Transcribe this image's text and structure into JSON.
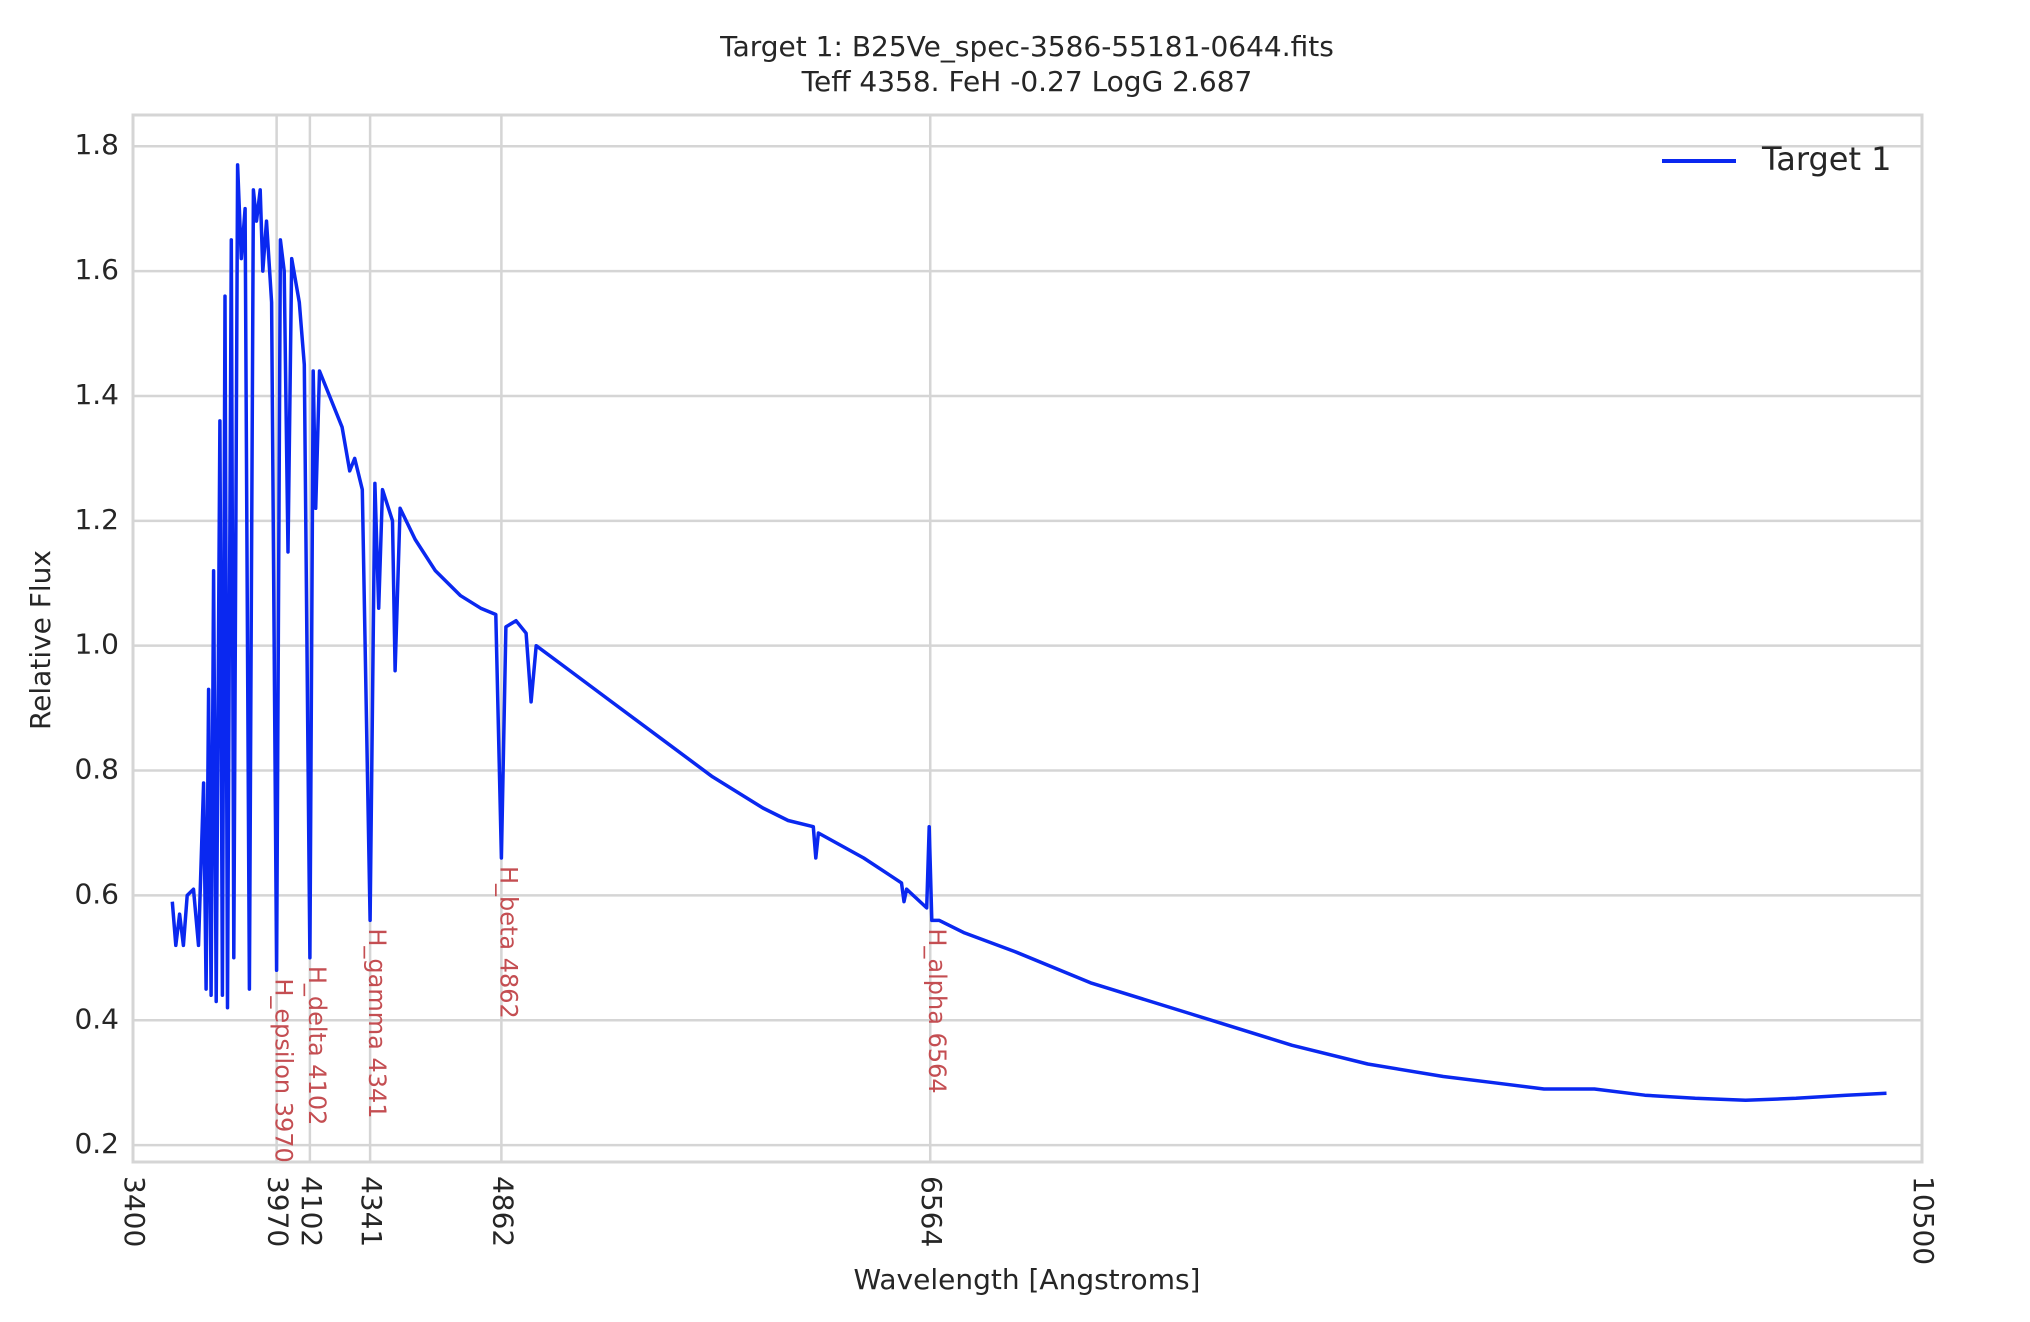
{
  "chart_data": {
    "type": "line",
    "title": "Target 1: B25Ve_spec-3586-55181-0644.fits",
    "subtitle": "Teff 4358. FeH -0.27 LogG 2.687",
    "x_label": "Wavelength [Angstroms]",
    "y_label": "Relative Flux",
    "x": [
      3556,
      3570,
      3585,
      3600,
      3615,
      3640,
      3660,
      3680,
      3690,
      3700,
      3710,
      3720,
      3730,
      3745,
      3755,
      3765,
      3775,
      3790,
      3800,
      3815,
      3830,
      3845,
      3862,
      3878,
      3890,
      3905,
      3915,
      3930,
      3950,
      3970,
      3985,
      4000,
      4015,
      4030,
      4060,
      4080,
      4102,
      4115,
      4125,
      4140,
      4180,
      4230,
      4260,
      4280,
      4310,
      4341,
      4360,
      4375,
      4390,
      4430,
      4440,
      4460,
      4520,
      4600,
      4700,
      4780,
      4840,
      4862,
      4880,
      4920,
      4960,
      4980,
      5000,
      5100,
      5300,
      5500,
      5700,
      5900,
      6000,
      6100,
      6110,
      6120,
      6300,
      6450,
      6460,
      6470,
      6550,
      6560,
      6570,
      6600,
      6700,
      6900,
      7200,
      7600,
      8000,
      8300,
      8600,
      8800,
      9000,
      9200,
      9400,
      9600,
      9800,
      10000,
      10200,
      10359
    ],
    "series": [
      {
        "name": "Target 1",
        "color": "#0a28f0",
        "values": [
          0.59,
          0.52,
          0.57,
          0.52,
          0.6,
          0.61,
          0.52,
          0.78,
          0.45,
          0.93,
          0.44,
          1.12,
          0.43,
          1.36,
          0.44,
          1.56,
          0.42,
          1.65,
          0.5,
          1.77,
          1.62,
          1.7,
          0.45,
          1.73,
          1.68,
          1.73,
          1.6,
          1.68,
          1.55,
          0.48,
          1.65,
          1.6,
          1.15,
          1.62,
          1.55,
          1.45,
          0.5,
          1.44,
          1.22,
          1.44,
          1.4,
          1.35,
          1.28,
          1.3,
          1.25,
          0.56,
          1.26,
          1.06,
          1.25,
          1.2,
          0.96,
          1.22,
          1.17,
          1.12,
          1.08,
          1.06,
          1.05,
          0.66,
          1.03,
          1.04,
          1.02,
          0.91,
          1.0,
          0.97,
          0.91,
          0.85,
          0.79,
          0.74,
          0.72,
          0.71,
          0.66,
          0.7,
          0.66,
          0.62,
          0.59,
          0.61,
          0.58,
          0.71,
          0.56,
          0.56,
          0.54,
          0.51,
          0.46,
          0.41,
          0.36,
          0.33,
          0.31,
          0.3,
          0.29,
          0.29,
          0.28,
          0.275,
          0.272,
          0.275,
          0.28,
          0.283
        ]
      }
    ],
    "annotations": [
      {
        "x": 3970,
        "label": "H_epsilon 3970"
      },
      {
        "x": 4102,
        "label": "H_delta 4102"
      },
      {
        "x": 4341,
        "label": "H_gamma 4341"
      },
      {
        "x": 4862,
        "label": "H_beta 4862"
      },
      {
        "x": 6564,
        "label": "H_alpha 6564"
      }
    ],
    "annotation_color": "#c44e52",
    "xlim": [
      3400,
      10500
    ],
    "xticks": [
      3400,
      3970,
      4102,
      4341,
      4862,
      6564,
      10500
    ],
    "ylim": [
      0.173,
      1.85
    ],
    "yticks": [
      {
        "value": 0.2,
        "label": "0.2"
      },
      {
        "value": 0.4,
        "label": "0.4"
      },
      {
        "value": 0.6,
        "label": "0.6"
      },
      {
        "value": 0.8,
        "label": "0.8"
      },
      {
        "value": 1.0,
        "label": "1.0"
      },
      {
        "value": 1.2,
        "label": "1.2"
      },
      {
        "value": 1.4,
        "label": "1.4"
      },
      {
        "value": 1.6,
        "label": "1.6"
      },
      {
        "value": 1.8,
        "label": "1.8"
      }
    ],
    "grid": true,
    "legend": "upper right"
  }
}
